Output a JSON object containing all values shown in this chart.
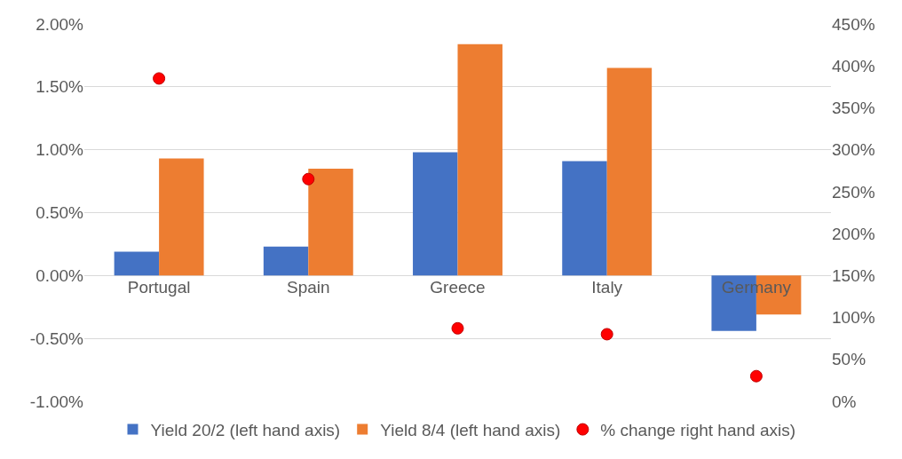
{
  "chart_data": {
    "type": "bar",
    "categories": [
      "Portugal",
      "Spain",
      "Greece",
      "Italy",
      "Germany"
    ],
    "series": [
      {
        "name": "Yield 20/2 (left hand axis)",
        "color": "#4472c4",
        "values": [
          0.19,
          0.23,
          0.98,
          0.91,
          -0.44
        ]
      },
      {
        "name": "Yield 8/4 (left hand axis)",
        "color": "#ed7d31",
        "values": [
          0.93,
          0.85,
          1.84,
          1.65,
          -0.31
        ]
      },
      {
        "name": "% change right hand axis)",
        "color": "#ff0000",
        "type": "scatter",
        "axis": "y2",
        "values": [
          385,
          265,
          87,
          80,
          30
        ]
      }
    ],
    "ylim": [
      -1,
      2
    ],
    "yticks": [
      {
        "value": -1,
        "label": "-1.00%"
      },
      {
        "value": -0.5,
        "label": "-0.50%"
      },
      {
        "value": 0,
        "label": "0.00%"
      },
      {
        "value": 0.5,
        "label": "0.50%"
      },
      {
        "value": 1,
        "label": "1.00%"
      },
      {
        "value": 1.5,
        "label": "1.50%"
      },
      {
        "value": 2,
        "label": "2.00%"
      }
    ],
    "y2lim": [
      0,
      450
    ],
    "y2ticks": [
      {
        "value": 0,
        "label": "0%"
      },
      {
        "value": 50,
        "label": "50%"
      },
      {
        "value": 100,
        "label": "100%"
      },
      {
        "value": 150,
        "label": "150%"
      },
      {
        "value": 200,
        "label": "200%"
      },
      {
        "value": 250,
        "label": "250%"
      },
      {
        "value": 300,
        "label": "300%"
      },
      {
        "value": 350,
        "label": "350%"
      },
      {
        "value": 400,
        "label": "400%"
      },
      {
        "value": 450,
        "label": "450%"
      }
    ],
    "grid": "y",
    "legend": "bottom",
    "marker": "circle"
  }
}
